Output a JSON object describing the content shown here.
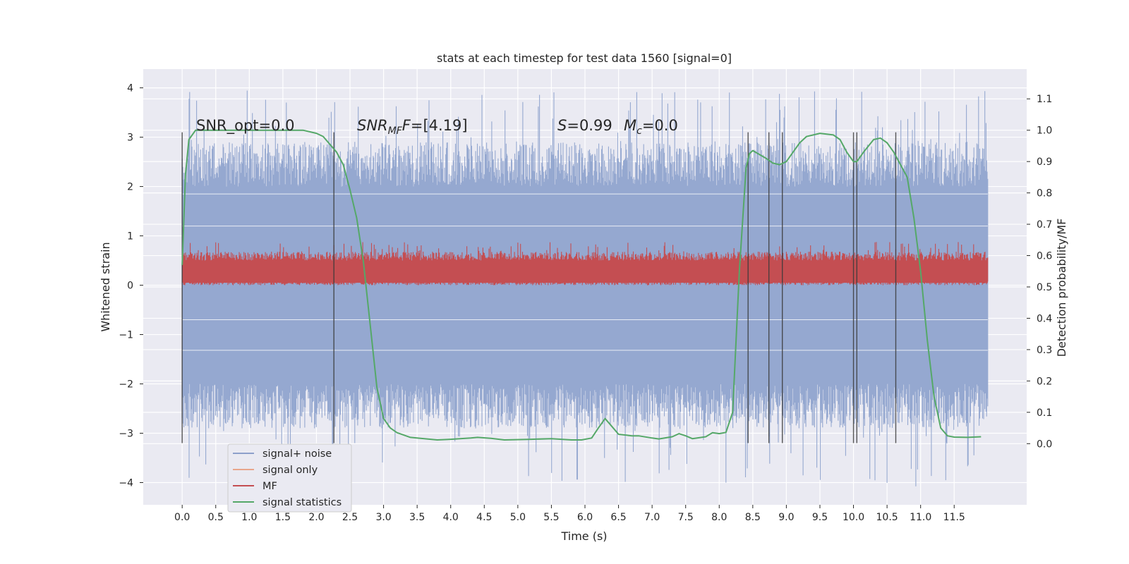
{
  "chart_data": {
    "type": "line",
    "title": "stats at each timestep for test data 1560 [signal=0]",
    "xlabel": "Time (s)",
    "ylabel": "Whitened strain",
    "y2label": "Detection probability/MF",
    "xlim": [
      -0.58,
      12.58
    ],
    "ylim": [
      -4.45,
      4.38
    ],
    "y2lim": [
      -0.195,
      1.195
    ],
    "xticks": [
      "0.0",
      "0.5",
      "1.0",
      "1.5",
      "2.0",
      "2.5",
      "3.0",
      "3.5",
      "4.0",
      "4.5",
      "5.0",
      "5.5",
      "6.0",
      "6.5",
      "7.0",
      "7.5",
      "8.0",
      "8.5",
      "9.0",
      "9.5",
      "10.0",
      "10.5",
      "11.0",
      "11.5"
    ],
    "yticks": [
      "4",
      "3",
      "2",
      "1",
      "0",
      "−1",
      "−2",
      "−3",
      "−4"
    ],
    "y2ticks": [
      "1.1",
      "1.0",
      "0.9",
      "0.8",
      "0.7",
      "0.6",
      "0.5",
      "0.4",
      "0.3",
      "0.2",
      "0.1",
      "0.0"
    ],
    "grid": true,
    "legend_position": "lower-left",
    "legend": [
      {
        "label": "signal+ noise",
        "color": "#8da0cb"
      },
      {
        "label": "signal only",
        "color": "#e8a68c"
      },
      {
        "label": "MF",
        "color": "#c44e52"
      },
      {
        "label": "signal statistics",
        "color": "#55a868"
      }
    ],
    "annotations": {
      "snr_opt": "SNR_opt=0.0",
      "snr_mf_label": "SNR",
      "snr_mf_sub": "MF",
      "snr_mf_value": "=[4.19]",
      "s_label": "S",
      "s_value": "=0.99",
      "mc_label": "M",
      "mc_sub": "c",
      "mc_value": "=0.0"
    },
    "noise_series": {
      "name": "signal+ noise",
      "t_range": [
        0.0,
        12.0
      ],
      "typical_range": [
        -2.0,
        2.0
      ],
      "peak_range": [
        -4.1,
        3.95
      ]
    },
    "mf_series": {
      "name": "MF",
      "t_range": [
        0.0,
        12.0
      ],
      "typical_range": [
        0.0,
        0.6
      ],
      "peak": 0.88
    },
    "signal_statistics": {
      "name": "signal statistics",
      "points": [
        [
          0.0,
          0.57
        ],
        [
          0.05,
          0.86
        ],
        [
          0.1,
          0.97
        ],
        [
          0.2,
          1.0
        ],
        [
          0.5,
          1.0
        ],
        [
          1.0,
          1.0
        ],
        [
          1.5,
          1.0
        ],
        [
          1.8,
          1.0
        ],
        [
          2.0,
          0.99
        ],
        [
          2.1,
          0.98
        ],
        [
          2.3,
          0.93
        ],
        [
          2.4,
          0.89
        ],
        [
          2.5,
          0.81
        ],
        [
          2.6,
          0.72
        ],
        [
          2.7,
          0.58
        ],
        [
          2.8,
          0.38
        ],
        [
          2.9,
          0.18
        ],
        [
          3.0,
          0.08
        ],
        [
          3.1,
          0.05
        ],
        [
          3.2,
          0.035
        ],
        [
          3.4,
          0.02
        ],
        [
          3.8,
          0.012
        ],
        [
          4.0,
          0.014
        ],
        [
          4.3,
          0.018
        ],
        [
          4.4,
          0.02
        ],
        [
          4.6,
          0.017
        ],
        [
          4.8,
          0.012
        ],
        [
          5.2,
          0.014
        ],
        [
          5.5,
          0.016
        ],
        [
          5.8,
          0.012
        ],
        [
          5.95,
          0.012
        ],
        [
          6.1,
          0.018
        ],
        [
          6.2,
          0.05
        ],
        [
          6.3,
          0.08
        ],
        [
          6.4,
          0.055
        ],
        [
          6.5,
          0.03
        ],
        [
          6.7,
          0.025
        ],
        [
          6.8,
          0.025
        ],
        [
          7.0,
          0.018
        ],
        [
          7.1,
          0.015
        ],
        [
          7.3,
          0.022
        ],
        [
          7.4,
          0.032
        ],
        [
          7.5,
          0.025
        ],
        [
          7.6,
          0.016
        ],
        [
          7.8,
          0.022
        ],
        [
          7.9,
          0.035
        ],
        [
          8.0,
          0.032
        ],
        [
          8.1,
          0.036
        ],
        [
          8.2,
          0.1
        ],
        [
          8.3,
          0.55
        ],
        [
          8.4,
          0.88
        ],
        [
          8.45,
          0.925
        ],
        [
          8.5,
          0.935
        ],
        [
          8.7,
          0.91
        ],
        [
          8.8,
          0.895
        ],
        [
          8.9,
          0.89
        ],
        [
          9.0,
          0.9
        ],
        [
          9.1,
          0.93
        ],
        [
          9.2,
          0.96
        ],
        [
          9.3,
          0.98
        ],
        [
          9.5,
          0.99
        ],
        [
          9.7,
          0.985
        ],
        [
          9.8,
          0.97
        ],
        [
          9.9,
          0.93
        ],
        [
          10.0,
          0.9
        ],
        [
          10.05,
          0.9
        ],
        [
          10.15,
          0.93
        ],
        [
          10.3,
          0.97
        ],
        [
          10.4,
          0.975
        ],
        [
          10.5,
          0.96
        ],
        [
          10.6,
          0.93
        ],
        [
          10.8,
          0.85
        ],
        [
          10.9,
          0.72
        ],
        [
          11.0,
          0.55
        ],
        [
          11.1,
          0.33
        ],
        [
          11.2,
          0.15
        ],
        [
          11.3,
          0.05
        ],
        [
          11.4,
          0.025
        ],
        [
          11.5,
          0.021
        ],
        [
          11.7,
          0.02
        ],
        [
          11.9,
          0.022
        ]
      ]
    },
    "vertical_markers": {
      "x": [
        0.0,
        2.26,
        8.43,
        8.74,
        8.94,
        10.0,
        10.05,
        10.63
      ],
      "y_range": [
        -3.2,
        3.1
      ]
    }
  }
}
